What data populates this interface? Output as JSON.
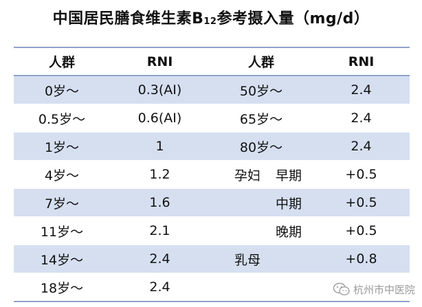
{
  "title": {
    "prefix": "中国居民膳食维生素B",
    "subscript": "12",
    "suffix": "参考摄入量（mg/d）"
  },
  "headers": [
    "人群",
    "RNI",
    "人群",
    "RNI"
  ],
  "rows": [
    {
      "age_left": "0岁～",
      "rni_left": "0.3(AI)",
      "age_right": "50岁～",
      "rni_right": "2.4"
    },
    {
      "age_left": "0.5岁～",
      "rni_left": "0.6(AI)",
      "age_right": "65岁～",
      "rni_right": "2.4"
    },
    {
      "age_left": "1岁～",
      "rni_left": "1",
      "age_right": "80岁～",
      "rni_right": "2.4"
    },
    {
      "age_left": "4岁～",
      "rni_left": "1.2",
      "group_right": "孕妇",
      "stage_right": "早期",
      "rni_right": "+0.5"
    },
    {
      "age_left": "7岁～",
      "rni_left": "1.6",
      "stage_right": "中期",
      "rni_right": "+0.5"
    },
    {
      "age_left": "11岁～",
      "rni_left": "2.1",
      "stage_right": "晚期",
      "rni_right": "+0.5"
    },
    {
      "age_left": "14岁～",
      "rni_left": "2.4",
      "group_right": "乳母",
      "rni_right": "+0.8"
    },
    {
      "age_left": "18岁～",
      "rni_left": "2.4"
    }
  ],
  "watermark": {
    "text": "杭州市中医院",
    "icon": "wechat-icon"
  },
  "colors": {
    "shaded_row": "#d5dff0",
    "rule_line": "#8ea3c9"
  }
}
